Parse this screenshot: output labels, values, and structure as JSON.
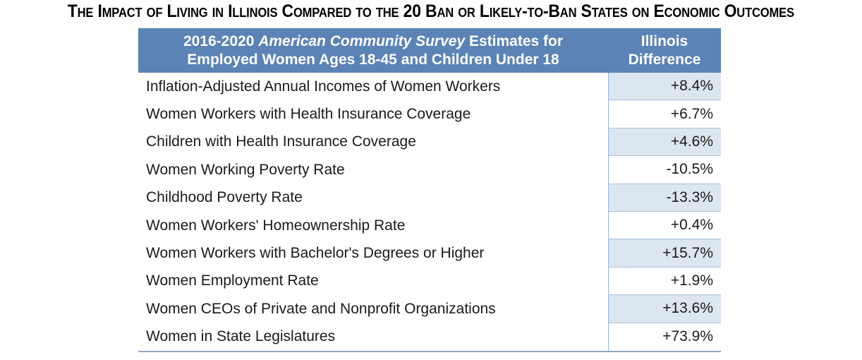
{
  "title": "The Impact of Living in Illinois Compared to the 20 Ban or Likely-to-Ban States on Economic Outcomes",
  "header": {
    "left_line1_pre": "2016-2020 ",
    "left_line1_italic": "American Community Survey",
    "left_line1_post": " Estimates for",
    "left_line2": "Employed Women Ages 18-45 and Children Under 18",
    "right_line1": "Illinois",
    "right_line2": "Difference"
  },
  "rows": [
    {
      "label": "Inflation-Adjusted Annual Incomes of Women Workers",
      "value": "+8.4%"
    },
    {
      "label": "Women Workers with Health Insurance Coverage",
      "value": "+6.7%"
    },
    {
      "label": "Children with Health Insurance Coverage",
      "value": "+4.6%"
    },
    {
      "label": "Women Working Poverty Rate",
      "value": "-10.5%"
    },
    {
      "label": "Childhood Poverty Rate",
      "value": "-13.3%"
    },
    {
      "label": "Women Workers' Homeownership Rate",
      "value": "+0.4%"
    },
    {
      "label": "Women Workers with Bachelor's Degrees or Higher",
      "value": "+15.7%"
    },
    {
      "label": "Women Employment Rate",
      "value": "+1.9%"
    },
    {
      "label": "Women CEOs of Private and Nonprofit Organizations",
      "value": "+13.6%"
    },
    {
      "label": "Women in State Legislatures",
      "value": "+73.9%"
    }
  ],
  "colors": {
    "header_bg": "#5b83b5",
    "header_text": "#ffffff",
    "band_bg": "#dce6f1",
    "row_separator": "#aac2de",
    "column_separator": "#95b3d7",
    "bottom_border": "#8ea9c1",
    "text": "#1a1a1a"
  },
  "chart_data": {
    "type": "table",
    "title": "The Impact of Living in Illinois Compared to the 20 Ban or Likely-to-Ban States on Economic Outcomes",
    "subtitle": "2016-2020 American Community Survey Estimates for Employed Women Ages 18-45 and Children Under 18",
    "value_column_header": "Illinois Difference",
    "categories": [
      "Inflation-Adjusted Annual Incomes of Women Workers",
      "Women Workers with Health Insurance Coverage",
      "Children with Health Insurance Coverage",
      "Women Working Poverty Rate",
      "Childhood Poverty Rate",
      "Women Workers' Homeownership Rate",
      "Women Workers with Bachelor's Degrees or Higher",
      "Women Employment Rate",
      "Women CEOs of Private and Nonprofit Organizations",
      "Women in State Legislatures"
    ],
    "values": [
      8.4,
      6.7,
      4.6,
      -10.5,
      -13.3,
      0.4,
      15.7,
      1.9,
      13.6,
      73.9
    ],
    "unit": "percent"
  }
}
